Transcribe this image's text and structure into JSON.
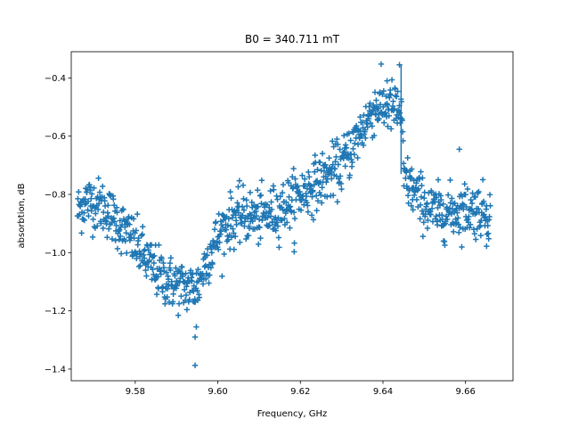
{
  "chart_data": {
    "type": "scatter",
    "title": "B0 = 340.711 mT",
    "xlabel": "Frequency, GHz",
    "ylabel": "absorbtion, dB",
    "xlim": [
      9.5645,
      9.6715
    ],
    "ylim": [
      -1.44,
      -0.31
    ],
    "xticks": [
      9.58,
      9.6,
      9.62,
      9.64,
      9.66
    ],
    "xtick_labels": [
      "9.58",
      "9.60",
      "9.62",
      "9.64",
      "9.66"
    ],
    "yticks": [
      -1.4,
      -1.2,
      -1.0,
      -0.8,
      -0.6,
      -0.4
    ],
    "ytick_labels": [
      "−1.4",
      "−1.2",
      "−1.0",
      "−0.8",
      "−0.6",
      "−0.4"
    ],
    "grid": false,
    "marker": "+",
    "color": "#1f77b4",
    "x_range": [
      9.566,
      9.666
    ],
    "n_points": 1000,
    "noise_sd": 0.045,
    "trend": {
      "x": [
        9.566,
        9.568,
        9.572,
        9.576,
        9.58,
        9.584,
        9.588,
        9.592,
        9.595,
        9.598,
        9.602,
        9.606,
        9.61,
        9.614,
        9.618,
        9.622,
        9.626,
        9.63,
        9.634,
        9.638,
        9.642,
        9.6445,
        9.645,
        9.648,
        9.652,
        9.656,
        9.66,
        9.666
      ],
      "y": [
        -0.86,
        -0.82,
        -0.84,
        -0.9,
        -0.97,
        -1.05,
        -1.1,
        -1.12,
        -1.12,
        -1.0,
        -0.9,
        -0.87,
        -0.88,
        -0.86,
        -0.82,
        -0.78,
        -0.74,
        -0.7,
        -0.6,
        -0.5,
        -0.5,
        -0.52,
        -0.74,
        -0.8,
        -0.86,
        -0.86,
        -0.85,
        -0.86
      ]
    },
    "outliers": [
      {
        "x": 9.5945,
        "y": -1.387
      },
      {
        "x": 9.5945,
        "y": -1.29
      },
      {
        "x": 9.5948,
        "y": -1.255
      },
      {
        "x": 9.644,
        "y": -0.355
      },
      {
        "x": 9.6185,
        "y": -0.997
      },
      {
        "x": 9.6585,
        "y": -0.645
      },
      {
        "x": 9.641,
        "y": -0.41
      },
      {
        "x": 9.6651,
        "y": -0.978
      }
    ],
    "spike": {
      "x": 9.6444,
      "y_top": -0.355,
      "y_bottom": -0.73
    }
  }
}
